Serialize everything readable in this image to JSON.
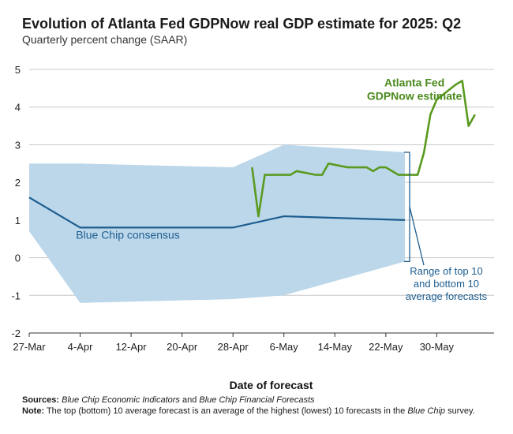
{
  "header": {
    "title": "Evolution of Atlanta Fed GDPNow real GDP estimate for 2025: Q2",
    "subtitle": "Quarterly percent change (SAAR)"
  },
  "footer": {
    "sources_label": "Sources:",
    "sources_text_1": "Blue Chip Economic Indicators",
    "sources_and": " and ",
    "sources_text_2": "Blue Chip Financial Forecasts",
    "note_label": "Note:",
    "note_text_1": " The top (bottom) 10 average forecast is an average of the highest (lowest) 10 forecasts in the ",
    "note_text_2": "Blue Chip",
    "note_text_3": " survey."
  },
  "chart_data": {
    "type": "line",
    "title": "Evolution of Atlanta Fed GDPNow real GDP estimate for 2025: Q2",
    "subtitle": "Quarterly percent change (SAAR)",
    "xlabel": "Date of forecast",
    "ylabel": "",
    "ylim": [
      -2,
      5
    ],
    "yticks": [
      5,
      4,
      3,
      2,
      1,
      0,
      -1,
      -2
    ],
    "ytick_labels": [
      "5",
      "4",
      "3",
      "2",
      "1",
      "0",
      "-1",
      "-2"
    ],
    "xlim": [
      0,
      73
    ],
    "xticks": [
      0,
      8,
      16,
      24,
      32,
      40,
      48,
      56,
      64
    ],
    "xtick_labels": [
      "27-Mar",
      "4-Apr",
      "12-Apr",
      "20-Apr",
      "28-Apr",
      "6-May",
      "14-May",
      "22-May",
      "30-May"
    ],
    "grid": true,
    "series": [
      {
        "name": "Atlanta Fed GDPNow estimate",
        "label_lines": [
          "Atlanta Fed",
          "GDPNow estimate"
        ],
        "color": "#5a9a1f",
        "x": [
          35,
          36,
          37,
          38,
          41,
          42,
          45,
          46,
          47,
          50,
          51,
          53,
          54,
          55,
          56,
          57,
          58,
          61,
          62,
          63,
          64,
          67,
          68,
          69,
          70
        ],
        "y": [
          2.4,
          1.1,
          2.2,
          2.2,
          2.2,
          2.3,
          2.2,
          2.2,
          2.5,
          2.4,
          2.4,
          2.4,
          2.3,
          2.4,
          2.4,
          2.3,
          2.2,
          2.2,
          2.8,
          3.8,
          4.2,
          4.6,
          4.7,
          3.5,
          3.8
        ]
      },
      {
        "name": "Blue Chip consensus",
        "color": "#1d5d8f",
        "x": [
          0,
          8,
          32,
          40,
          59
        ],
        "y": [
          1.6,
          0.8,
          0.8,
          1.1,
          1.0
        ]
      }
    ],
    "band": {
      "name": "Range of top 10 and bottom 10 average forecasts",
      "label_lines": [
        "Range of top 10",
        "and bottom 10",
        "average forecasts"
      ],
      "color": "#bcd7ea",
      "x": [
        0,
        8,
        32,
        40,
        59
      ],
      "upper": [
        2.5,
        2.5,
        2.4,
        3.0,
        2.8
      ],
      "lower": [
        0.7,
        -1.2,
        -1.1,
        -1.0,
        -0.1
      ]
    }
  }
}
